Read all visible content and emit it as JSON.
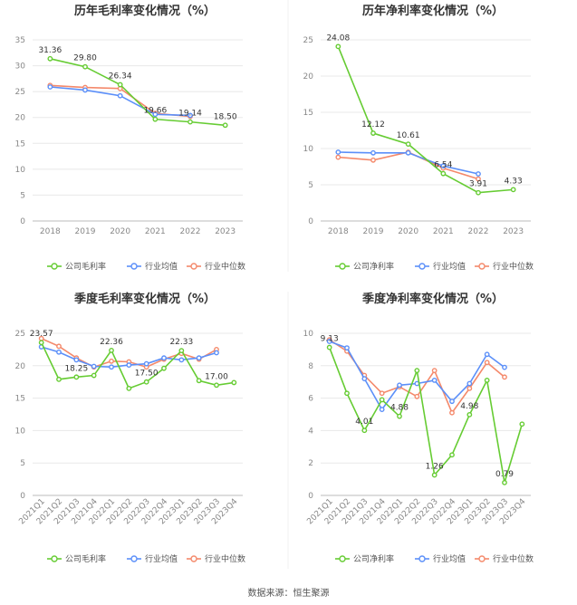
{
  "colors": {
    "company": "#66cc33",
    "industry_avg": "#5b8ff9",
    "industry_median": "#f4896b",
    "axis_text": "#888888",
    "grid": "#e8e8e8"
  },
  "footer": "数据来源：恒生聚源",
  "chart_data": [
    {
      "type": "line",
      "title": "历年毛利率变化情况（%）",
      "categories": [
        "2018",
        "2019",
        "2020",
        "2021",
        "2022",
        "2023"
      ],
      "ylim": [
        0,
        35
      ],
      "yticks": [
        0,
        5,
        10,
        15,
        20,
        25,
        30,
        35
      ],
      "grid": true,
      "legend": "bottom",
      "series": [
        {
          "name": "公司毛利率",
          "values": [
            31.36,
            29.8,
            26.34,
            19.66,
            19.14,
            18.5
          ],
          "labels": [
            "31.36",
            "29.80",
            "26.34",
            "19.66",
            "19.14",
            "18.50"
          ]
        },
        {
          "name": "行业均值",
          "values": [
            25.9,
            25.3,
            24.2,
            20.6,
            20.4,
            null
          ]
        },
        {
          "name": "行业中位数",
          "values": [
            26.2,
            25.8,
            25.6,
            20.8,
            20.2,
            null
          ]
        }
      ]
    },
    {
      "type": "line",
      "title": "历年净利率变化情况（%）",
      "categories": [
        "2018",
        "2019",
        "2020",
        "2021",
        "2022",
        "2023"
      ],
      "ylim": [
        0,
        25
      ],
      "yticks": [
        0,
        5,
        10,
        15,
        20,
        25
      ],
      "grid": true,
      "legend": "bottom",
      "series": [
        {
          "name": "公司净利率",
          "values": [
            24.08,
            12.12,
            10.61,
            6.54,
            3.91,
            4.33
          ],
          "labels": [
            "24.08",
            "12.12",
            "10.61",
            "6.54",
            "3.91",
            "4.33"
          ]
        },
        {
          "name": "行业均值",
          "values": [
            9.5,
            9.4,
            9.4,
            7.6,
            6.5,
            null
          ]
        },
        {
          "name": "行业中位数",
          "values": [
            8.8,
            8.4,
            9.5,
            7.3,
            5.8,
            null
          ]
        }
      ]
    },
    {
      "type": "line",
      "title": "季度毛利率变化情况（%）",
      "categories": [
        "2021Q1",
        "2021Q2",
        "2021Q3",
        "2021Q4",
        "2022Q1",
        "2022Q2",
        "2022Q3",
        "2022Q4",
        "2023Q1",
        "2023Q2",
        "2023Q3",
        "2023Q4"
      ],
      "ylim": [
        0,
        25
      ],
      "yticks": [
        0,
        5,
        10,
        15,
        20,
        25
      ],
      "grid": true,
      "legend": "bottom",
      "series": [
        {
          "name": "公司毛利率",
          "values": [
            23.57,
            17.9,
            18.25,
            18.5,
            22.36,
            16.5,
            17.5,
            19.6,
            22.33,
            17.7,
            17.0,
            17.4
          ],
          "labels": [
            "23.57",
            "",
            "18.25",
            "",
            "22.36",
            "",
            "17.50",
            "",
            "22.33",
            "",
            "17.00",
            ""
          ]
        },
        {
          "name": "行业均值",
          "values": [
            22.9,
            22.1,
            20.9,
            19.9,
            19.8,
            20.1,
            20.3,
            21.2,
            20.9,
            21.2,
            22.0,
            null
          ]
        },
        {
          "name": "行业中位数",
          "values": [
            24.2,
            23.0,
            21.2,
            19.8,
            20.7,
            20.6,
            19.8,
            21.0,
            21.9,
            21.0,
            22.5,
            null
          ]
        }
      ]
    },
    {
      "type": "line",
      "title": "季度净利率变化情况（%）",
      "categories": [
        "2021Q1",
        "2021Q2",
        "2021Q3",
        "2021Q4",
        "2022Q1",
        "2022Q2",
        "2022Q3",
        "2022Q4",
        "2023Q1",
        "2023Q2",
        "2023Q3",
        "2023Q4"
      ],
      "ylim": [
        0,
        10
      ],
      "yticks": [
        0,
        2,
        4,
        6,
        8,
        10
      ],
      "grid": true,
      "legend": "bottom",
      "series": [
        {
          "name": "公司净利率",
          "values": [
            9.13,
            6.3,
            4.01,
            5.9,
            4.88,
            7.7,
            1.26,
            2.5,
            4.98,
            7.1,
            0.79,
            4.4
          ],
          "labels": [
            "9.13",
            "",
            "4.01",
            "",
            "4.88",
            "",
            "1.26",
            "",
            "4.98",
            "",
            "0.79",
            ""
          ]
        },
        {
          "name": "行业均值",
          "values": [
            9.5,
            9.1,
            7.2,
            5.3,
            6.8,
            6.9,
            7.1,
            5.8,
            6.9,
            8.7,
            7.9,
            null
          ]
        },
        {
          "name": "行业中位数",
          "values": [
            9.6,
            8.9,
            7.4,
            6.3,
            6.7,
            6.1,
            7.7,
            5.1,
            6.6,
            8.2,
            7.3,
            null
          ]
        }
      ]
    }
  ]
}
